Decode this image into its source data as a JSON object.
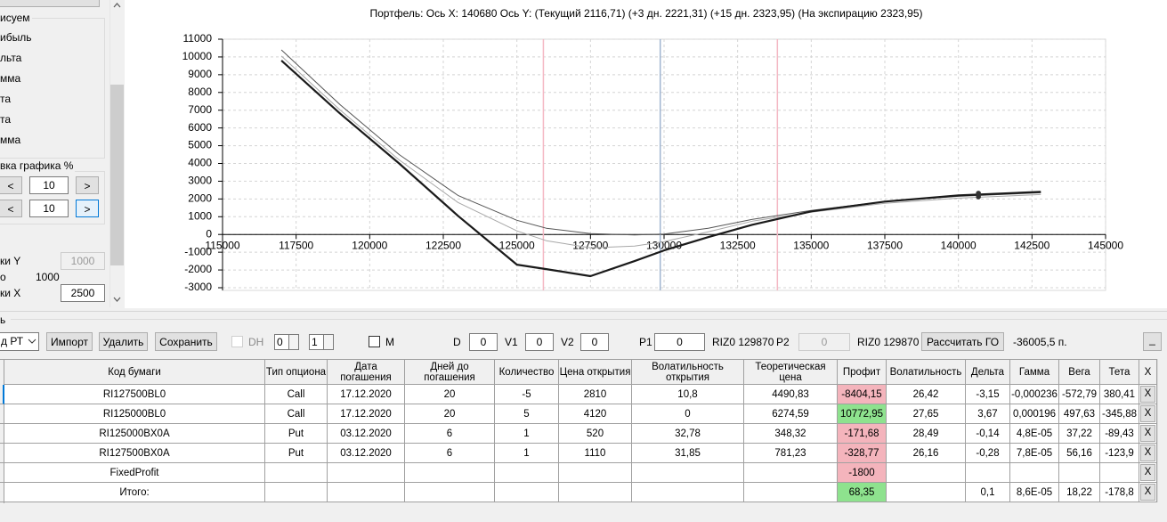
{
  "left_panel": {
    "top_group": "исуем",
    "items": [
      "ибыль",
      "льта",
      "мма",
      "та",
      "та",
      "мма"
    ],
    "scale_group": "вка графика %",
    "buttons": [
      "<",
      ">",
      "<",
      ">"
    ],
    "scale_rows": [
      "10",
      "10"
    ],
    "y_step_label": "ки Y",
    "y_step": "1000",
    "auto_label": "о",
    "auto_value": "1000",
    "x_step_label": "ки X",
    "x_step": "2500"
  },
  "chart_data": {
    "type": "line",
    "title": "Портфель: Ось X: 140680 Ось Y:  (Текущий 2116,71)  (+3 дн. 2221,31)  (+15 дн. 2323,95)  (На экспирацию 2323,95)",
    "x": [
      117000,
      119000,
      121000,
      123000,
      125000,
      126000,
      127500,
      129000,
      130000,
      131500,
      133000,
      135000,
      137500,
      140000,
      142800
    ],
    "series": [
      {
        "color": "#555555",
        "width": 1,
        "values": [
          10400,
          7300,
          4500,
          2200,
          800,
          350,
          50,
          -30,
          20,
          350,
          850,
          1350,
          1850,
          2150,
          2350
        ]
      },
      {
        "color": "#a8a8a8",
        "width": 1,
        "values": [
          10050,
          7000,
          4200,
          1800,
          200,
          -350,
          -750,
          -650,
          -400,
          150,
          750,
          1250,
          1750,
          2050,
          2250
        ]
      },
      {
        "color": "#1a1a1a",
        "width": 2.2,
        "values": [
          9800,
          6800,
          4000,
          1050,
          -1700,
          -1950,
          -2350,
          -1500,
          -900,
          -150,
          550,
          1300,
          1850,
          2200,
          2400
        ]
      }
    ],
    "vlines": [
      {
        "value": 125900,
        "color": "#f4b8c4"
      },
      {
        "value": 129870,
        "color": "#9fb4d0"
      },
      {
        "value": 133850,
        "color": "#f4b8c4"
      }
    ],
    "markers": {
      "x": 140680,
      "values": [
        2116.71,
        2221.31,
        2323.95
      ],
      "color": "#333333"
    },
    "xlim": [
      115000,
      145000
    ],
    "xticks": [
      115000,
      117500,
      120000,
      122500,
      125000,
      127500,
      130000,
      132500,
      135000,
      137500,
      140000,
      142500,
      145000
    ],
    "ylim": [
      -3000,
      11000
    ],
    "yticks": [
      -3000,
      -2000,
      -1000,
      0,
      1000,
      2000,
      3000,
      4000,
      5000,
      6000,
      7000,
      8000,
      9000,
      10000,
      11000
    ],
    "grid": true
  },
  "toolbar": {
    "section": "ь",
    "dropdown": "д РТ",
    "buttons": [
      "Импорт",
      "Удалить",
      "Сохранить"
    ],
    "dh": "DH",
    "spin": [
      "0",
      "1"
    ],
    "m": "M",
    "fields": [
      {
        "label": "D",
        "value": "0"
      },
      {
        "label": "V1",
        "value": "0"
      },
      {
        "label": "V2",
        "value": "0"
      },
      {
        "label": "P1",
        "value": "0"
      }
    ],
    "p1_ticker": "RIZ0 129870",
    "p2_label": "P2",
    "p2_value": "0",
    "p2_ticker": "RIZ0 129870",
    "calc": "Рассчитать ГО",
    "margin": "-36005,5 п.",
    "minimize": "_"
  },
  "table": {
    "headers": [
      "Код бумаги",
      "Тип опциона",
      "Дата погашения",
      "Дней до погашения",
      "Количество",
      "Цена открытия",
      "Волатильность открытия",
      "Теоретическая цена",
      "Профит",
      "Волатильность",
      "Дельта",
      "Гамма",
      "Вега",
      "Тета",
      "X"
    ],
    "delete_label": "X",
    "rows": [
      {
        "cells": [
          "RI127500BL0",
          "Call",
          "17.12.2020",
          "20",
          "-5",
          "2810",
          "10,8",
          "4490,83",
          "-8404,15",
          "26,42",
          "-3,15",
          "-0,000236",
          "-572,79",
          "380,41"
        ],
        "profit_color": "#f4b4bc"
      },
      {
        "cells": [
          "RI125000BL0",
          "Call",
          "17.12.2020",
          "20",
          "5",
          "4120",
          "0",
          "6274,59",
          "10772,95",
          "27,65",
          "3,67",
          "0,000196",
          "497,63",
          "-345,88"
        ],
        "profit_color": "#8ee28e"
      },
      {
        "cells": [
          "RI125000BX0A",
          "Put",
          "03.12.2020",
          "6",
          "1",
          "520",
          "32,78",
          "348,32",
          "-171,68",
          "28,49",
          "-0,14",
          "4,8E-05",
          "37,22",
          "-89,43"
        ],
        "profit_color": "#f4b4bc"
      },
      {
        "cells": [
          "RI127500BX0A",
          "Put",
          "03.12.2020",
          "6",
          "1",
          "1110",
          "31,85",
          "781,23",
          "-328,77",
          "26,16",
          "-0,28",
          "7,8E-05",
          "56,16",
          "-123,9"
        ],
        "profit_color": "#f4b4bc"
      },
      {
        "cells": [
          "FixedProfit",
          null,
          null,
          null,
          null,
          null,
          null,
          null,
          "-1800",
          null,
          null,
          null,
          null,
          null
        ],
        "profit_color": "#f4b4bc"
      },
      {
        "cells": [
          "Итого:",
          null,
          null,
          null,
          null,
          null,
          null,
          null,
          "68,35",
          null,
          "0,1",
          "8,6E-05",
          "18,22",
          "-178,8"
        ],
        "profit_color": "#8ee28e"
      }
    ]
  }
}
